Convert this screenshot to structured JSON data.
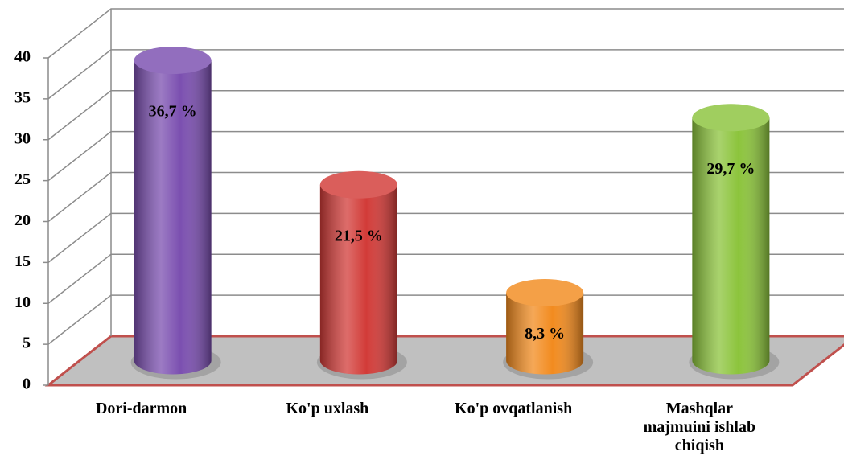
{
  "chart_data": {
    "type": "cylinder",
    "categories": [
      "Dori-darmon",
      "Ko'p uxlash",
      "Ko'p ovqatlanish",
      "Mashqlar majmuini ishlab chiqish"
    ],
    "values": [
      36.7,
      21.5,
      8.3,
      29.7
    ],
    "value_labels": [
      "36,7 %",
      "21,5 %",
      "8,3 %",
      "29,7 %"
    ],
    "colors": [
      "#7b4fb0",
      "#d23b38",
      "#f28b1f",
      "#8cc43c"
    ],
    "ylim": [
      0,
      40
    ],
    "yticks": [
      0,
      5,
      10,
      15,
      20,
      25,
      30,
      35,
      40
    ],
    "grid": true
  }
}
